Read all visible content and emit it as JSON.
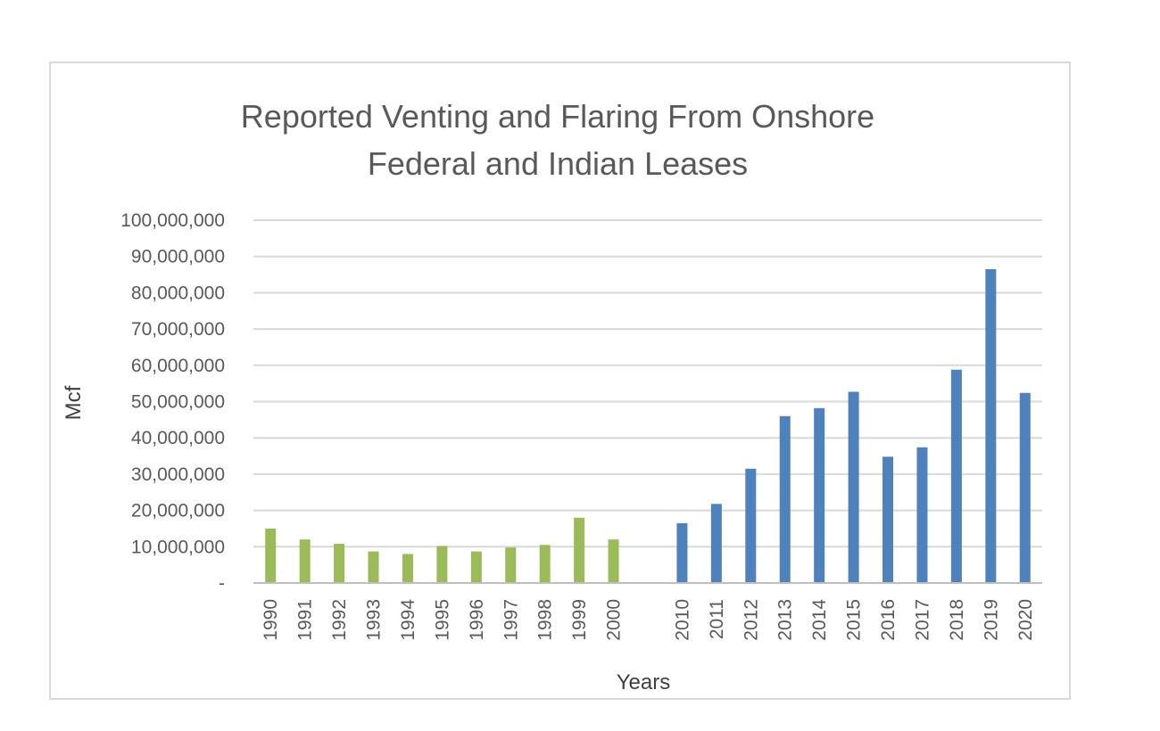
{
  "chart_data": {
    "type": "bar",
    "title_lines": [
      "Reported Venting and Flaring From Onshore",
      "Federal and Indian Leases"
    ],
    "xlabel": "Years",
    "ylabel": "Mcf",
    "ylim": [
      0,
      100000000
    ],
    "y_ticks": [
      {
        "value": 0,
        "label": "-"
      },
      {
        "value": 10000000,
        "label": "10,000,000"
      },
      {
        "value": 20000000,
        "label": "20,000,000"
      },
      {
        "value": 30000000,
        "label": "30,000,000"
      },
      {
        "value": 40000000,
        "label": "40,000,000"
      },
      {
        "value": 50000000,
        "label": "50,000,000"
      },
      {
        "value": 60000000,
        "label": "60,000,000"
      },
      {
        "value": 70000000,
        "label": "70,000,000"
      },
      {
        "value": 80000000,
        "label": "80,000,000"
      },
      {
        "value": 90000000,
        "label": "90,000,000"
      },
      {
        "value": 100000000,
        "label": "100,000,000"
      }
    ],
    "grid": true,
    "legend": "none",
    "categories": [
      "1990",
      "1991",
      "1992",
      "1993",
      "1994",
      "1995",
      "1996",
      "1997",
      "1998",
      "1999",
      "2000",
      "",
      "2010",
      "2011",
      "2012",
      "2013",
      "2014",
      "2015",
      "2016",
      "2017",
      "2018",
      "2019",
      "2020"
    ],
    "series": [
      {
        "color": "#9bbb59",
        "values": [
          15000000,
          12000000,
          10800000,
          8700000,
          8000000,
          10200000,
          8700000,
          9800000,
          10500000,
          18000000,
          12000000,
          null,
          null,
          null,
          null,
          null,
          null,
          null,
          null,
          null,
          null,
          null,
          null
        ]
      },
      {
        "color": "#4f81bd",
        "values": [
          null,
          null,
          null,
          null,
          null,
          null,
          null,
          null,
          null,
          null,
          null,
          null,
          16500000,
          21800000,
          31500000,
          46000000,
          48200000,
          52700000,
          34800000,
          37400000,
          58800000,
          86500000,
          52400000
        ]
      }
    ]
  }
}
